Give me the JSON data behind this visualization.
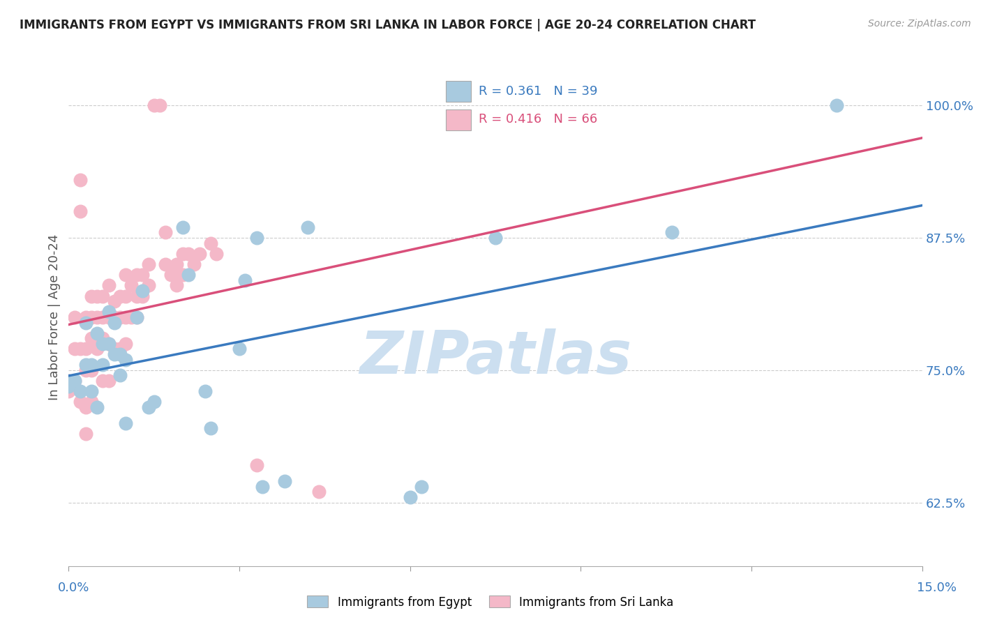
{
  "title": "IMMIGRANTS FROM EGYPT VS IMMIGRANTS FROM SRI LANKA IN LABOR FORCE | AGE 20-24 CORRELATION CHART",
  "source": "Source: ZipAtlas.com",
  "ylabel_label": "In Labor Force | Age 20-24",
  "legend_blue_r": "R = 0.361",
  "legend_blue_n": "N = 39",
  "legend_pink_r": "R = 0.416",
  "legend_pink_n": "N = 66",
  "watermark": "ZIPatlas",
  "blue_color": "#a8cadf",
  "pink_color": "#f4b8c8",
  "blue_line_color": "#3a7abf",
  "pink_line_color": "#d94f7a",
  "legend_text_blue": "#3a7abf",
  "legend_text_pink": "#d94f7a",
  "title_color": "#222222",
  "axis_tick_color": "#3a7abf",
  "watermark_color": "#ccdff0",
  "xlim": [
    0.0,
    0.15
  ],
  "ylim": [
    0.565,
    1.035
  ],
  "yticks": [
    0.625,
    0.75,
    0.875,
    1.0
  ],
  "ytick_labels": [
    "62.5%",
    "75.0%",
    "87.5%",
    "100.0%"
  ],
  "xtick_left_label": "0.0%",
  "xtick_right_label": "15.0%",
  "blue_x": [
    0.001,
    0.002,
    0.003,
    0.003,
    0.004,
    0.004,
    0.005,
    0.005,
    0.006,
    0.006,
    0.007,
    0.007,
    0.008,
    0.008,
    0.009,
    0.009,
    0.01,
    0.01,
    0.012,
    0.013,
    0.014,
    0.015,
    0.02,
    0.021,
    0.024,
    0.025,
    0.03,
    0.031,
    0.033,
    0.034,
    0.038,
    0.042,
    0.06,
    0.062,
    0.075,
    0.106,
    0.135,
    0.0,
    0.0
  ],
  "blue_y": [
    0.74,
    0.73,
    0.755,
    0.795,
    0.755,
    0.73,
    0.715,
    0.785,
    0.755,
    0.775,
    0.805,
    0.775,
    0.795,
    0.765,
    0.745,
    0.765,
    0.76,
    0.7,
    0.8,
    0.825,
    0.715,
    0.72,
    0.885,
    0.84,
    0.73,
    0.695,
    0.77,
    0.835,
    0.875,
    0.64,
    0.645,
    0.885,
    0.63,
    0.64,
    0.875,
    0.88,
    1.0,
    0.74,
    0.735
  ],
  "pink_x": [
    0.0,
    0.0,
    0.001,
    0.001,
    0.001,
    0.002,
    0.002,
    0.002,
    0.002,
    0.003,
    0.003,
    0.003,
    0.003,
    0.003,
    0.004,
    0.004,
    0.004,
    0.004,
    0.004,
    0.005,
    0.005,
    0.005,
    0.005,
    0.006,
    0.006,
    0.006,
    0.006,
    0.007,
    0.007,
    0.007,
    0.007,
    0.008,
    0.008,
    0.008,
    0.009,
    0.009,
    0.009,
    0.01,
    0.01,
    0.01,
    0.01,
    0.011,
    0.011,
    0.012,
    0.012,
    0.012,
    0.013,
    0.013,
    0.014,
    0.014,
    0.015,
    0.016,
    0.017,
    0.017,
    0.018,
    0.019,
    0.019,
    0.02,
    0.02,
    0.021,
    0.022,
    0.023,
    0.025,
    0.026,
    0.033,
    0.044
  ],
  "pink_y": [
    0.74,
    0.73,
    0.8,
    0.77,
    0.74,
    0.93,
    0.9,
    0.77,
    0.72,
    0.8,
    0.77,
    0.75,
    0.715,
    0.69,
    0.82,
    0.8,
    0.78,
    0.75,
    0.72,
    0.82,
    0.8,
    0.78,
    0.77,
    0.82,
    0.8,
    0.78,
    0.74,
    0.83,
    0.8,
    0.775,
    0.74,
    0.815,
    0.8,
    0.77,
    0.82,
    0.8,
    0.77,
    0.84,
    0.82,
    0.8,
    0.775,
    0.83,
    0.8,
    0.84,
    0.82,
    0.8,
    0.84,
    0.82,
    0.85,
    0.83,
    1.0,
    1.0,
    0.88,
    0.85,
    0.84,
    0.85,
    0.83,
    0.86,
    0.84,
    0.86,
    0.85,
    0.86,
    0.87,
    0.86,
    0.66,
    0.635
  ]
}
